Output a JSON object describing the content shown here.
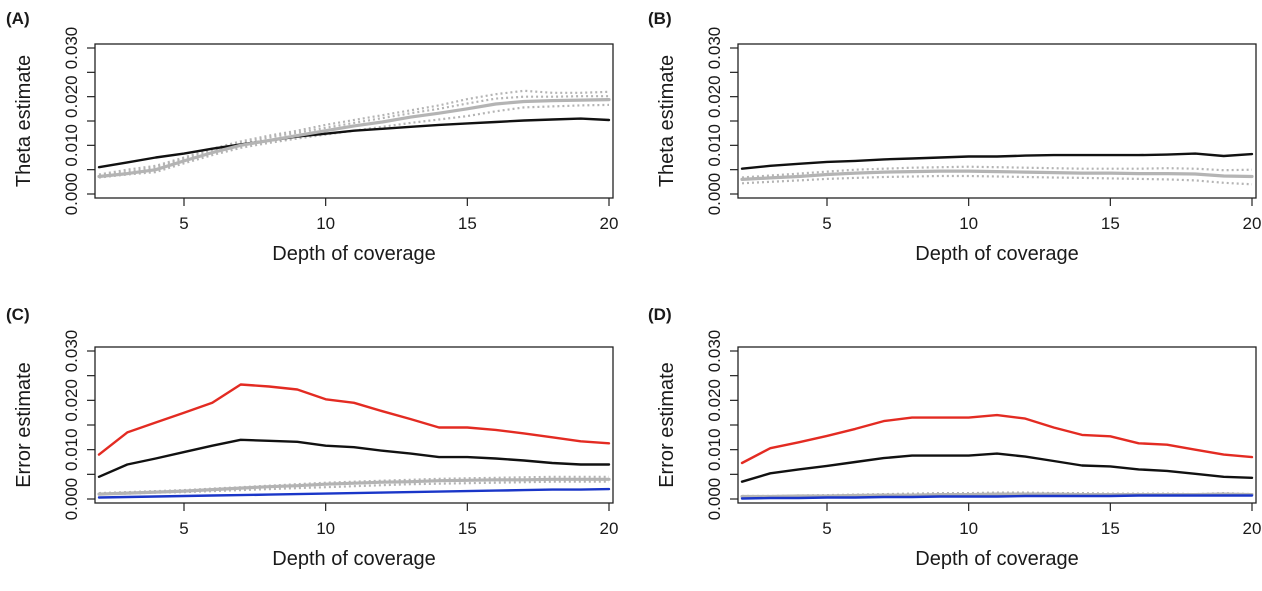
{
  "colors": {
    "black": "#111111",
    "grey": "#b4b4b4",
    "grey_dotted": "#b4b4b4",
    "red": "#e32b22",
    "blue": "#1a36c8"
  },
  "chart_data": [
    {
      "type": "line",
      "panel_label": "(A)",
      "xlabel": "Depth of coverage",
      "ylabel": "Theta estimate",
      "xlim": [
        2,
        20
      ],
      "ylim": [
        0,
        0.03
      ],
      "xticks": [
        5,
        10,
        15,
        20
      ],
      "xtick_labels": [
        "5",
        "10",
        "15",
        "20"
      ],
      "yticks": [
        0,
        0.005,
        0.01,
        0.015,
        0.02,
        0.025,
        0.03
      ],
      "ytick_labels": [
        "0.000",
        "",
        "0.010",
        "",
        "0.020",
        "",
        "0.030"
      ],
      "series": [
        {
          "color": "black",
          "style": "solid",
          "x": [
            2,
            3,
            4,
            5,
            6,
            7,
            8,
            9,
            10,
            11,
            12,
            13,
            14,
            15,
            16,
            17,
            18,
            19,
            20
          ],
          "y": [
            0.0055,
            0.0065,
            0.0075,
            0.0083,
            0.0093,
            0.0102,
            0.011,
            0.0118,
            0.0124,
            0.013,
            0.0134,
            0.0138,
            0.0142,
            0.0145,
            0.0148,
            0.0151,
            0.0153,
            0.0155,
            0.0152
          ]
        },
        {
          "color": "grey",
          "style": "solid",
          "x": [
            2,
            3,
            4,
            5,
            6,
            7,
            8,
            9,
            10,
            11,
            12,
            13,
            14,
            15,
            16,
            17,
            18,
            19,
            20
          ],
          "y": [
            0.0036,
            0.0042,
            0.005,
            0.0068,
            0.0085,
            0.01,
            0.011,
            0.012,
            0.013,
            0.014,
            0.0148,
            0.0158,
            0.0166,
            0.0175,
            0.0185,
            0.019,
            0.0192,
            0.0193,
            0.0194
          ]
        },
        {
          "color": "grey_dotted",
          "style": "dotted",
          "x": [
            2,
            3,
            4,
            5,
            6,
            7,
            8,
            9,
            10,
            11,
            12,
            13,
            14,
            15,
            16,
            17,
            18,
            19,
            20
          ],
          "y": [
            0.004,
            0.005,
            0.0058,
            0.0075,
            0.0093,
            0.0108,
            0.012,
            0.013,
            0.0142,
            0.0152,
            0.0162,
            0.0172,
            0.0182,
            0.0195,
            0.0205,
            0.0212,
            0.0208,
            0.0208,
            0.021
          ]
        },
        {
          "color": "grey_dotted",
          "style": "dotted",
          "x": [
            2,
            3,
            4,
            5,
            6,
            7,
            8,
            9,
            10,
            11,
            12,
            13,
            14,
            15,
            16,
            17,
            18,
            19,
            20
          ],
          "y": [
            0.0034,
            0.004,
            0.0045,
            0.0063,
            0.008,
            0.0095,
            0.0105,
            0.0114,
            0.0122,
            0.013,
            0.0138,
            0.0146,
            0.0153,
            0.016,
            0.017,
            0.0178,
            0.018,
            0.0182,
            0.0183
          ]
        },
        {
          "color": "grey_dotted",
          "style": "dotted",
          "x": [
            2,
            3,
            4,
            5,
            6,
            7,
            8,
            9,
            10,
            11,
            12,
            13,
            14,
            15,
            16,
            17,
            18,
            19,
            20
          ],
          "y": [
            0.0038,
            0.0045,
            0.0055,
            0.0072,
            0.009,
            0.0104,
            0.0116,
            0.0126,
            0.0136,
            0.0146,
            0.0156,
            0.0166,
            0.0175,
            0.0186,
            0.0196,
            0.02,
            0.02,
            0.0201,
            0.0201
          ]
        }
      ]
    },
    {
      "type": "line",
      "panel_label": "(B)",
      "xlabel": "Depth of coverage",
      "ylabel": "Theta estimate",
      "xlim": [
        2,
        20
      ],
      "ylim": [
        0,
        0.03
      ],
      "xticks": [
        5,
        10,
        15,
        20
      ],
      "xtick_labels": [
        "5",
        "10",
        "15",
        "20"
      ],
      "yticks": [
        0,
        0.005,
        0.01,
        0.015,
        0.02,
        0.025,
        0.03
      ],
      "ytick_labels": [
        "0.000",
        "",
        "0.010",
        "",
        "0.020",
        "",
        "0.030"
      ],
      "series": [
        {
          "color": "black",
          "style": "solid",
          "x": [
            2,
            3,
            4,
            5,
            6,
            7,
            8,
            9,
            10,
            11,
            12,
            13,
            14,
            15,
            16,
            17,
            18,
            19,
            20
          ],
          "y": [
            0.0052,
            0.0058,
            0.0062,
            0.0066,
            0.0068,
            0.0071,
            0.0073,
            0.0075,
            0.0077,
            0.0077,
            0.0079,
            0.008,
            0.008,
            0.008,
            0.008,
            0.0081,
            0.0083,
            0.0078,
            0.0082
          ]
        },
        {
          "color": "grey",
          "style": "solid",
          "x": [
            2,
            3,
            4,
            5,
            6,
            7,
            8,
            9,
            10,
            11,
            12,
            13,
            14,
            15,
            16,
            17,
            18,
            19,
            20
          ],
          "y": [
            0.003,
            0.0033,
            0.0036,
            0.004,
            0.0043,
            0.0045,
            0.0046,
            0.0047,
            0.0047,
            0.0046,
            0.0045,
            0.0044,
            0.0043,
            0.0043,
            0.0042,
            0.0042,
            0.0041,
            0.0037,
            0.0036
          ]
        },
        {
          "color": "grey_dotted",
          "style": "dotted",
          "x": [
            2,
            3,
            4,
            5,
            6,
            7,
            8,
            9,
            10,
            11,
            12,
            13,
            14,
            15,
            16,
            17,
            18,
            19,
            20
          ],
          "y": [
            0.0034,
            0.0038,
            0.0042,
            0.0046,
            0.005,
            0.0052,
            0.0054,
            0.0055,
            0.0056,
            0.0055,
            0.0054,
            0.0053,
            0.0052,
            0.0052,
            0.0052,
            0.0053,
            0.0052,
            0.0049,
            0.005
          ]
        },
        {
          "color": "grey_dotted",
          "style": "dotted",
          "x": [
            2,
            3,
            4,
            5,
            6,
            7,
            8,
            9,
            10,
            11,
            12,
            13,
            14,
            15,
            16,
            17,
            18,
            19,
            20
          ],
          "y": [
            0.0022,
            0.0025,
            0.0028,
            0.0031,
            0.0033,
            0.0035,
            0.0036,
            0.0037,
            0.0037,
            0.0036,
            0.0035,
            0.0034,
            0.0033,
            0.0032,
            0.0031,
            0.003,
            0.0028,
            0.0023,
            0.002
          ]
        }
      ]
    },
    {
      "type": "line",
      "panel_label": "(C)",
      "xlabel": "Depth of coverage",
      "ylabel": "Error estimate",
      "xlim": [
        2,
        20
      ],
      "ylim": [
        0,
        0.03
      ],
      "xticks": [
        5,
        10,
        15,
        20
      ],
      "xtick_labels": [
        "5",
        "10",
        "15",
        "20"
      ],
      "yticks": [
        0,
        0.005,
        0.01,
        0.015,
        0.02,
        0.025,
        0.03
      ],
      "ytick_labels": [
        "0.000",
        "",
        "0.010",
        "",
        "0.020",
        "",
        "0.030"
      ],
      "series": [
        {
          "color": "red",
          "style": "solid",
          "x": [
            2,
            3,
            4,
            5,
            6,
            7,
            8,
            9,
            10,
            11,
            12,
            13,
            14,
            15,
            16,
            17,
            18,
            19,
            20
          ],
          "y": [
            0.009,
            0.0135,
            0.0155,
            0.0175,
            0.0195,
            0.0232,
            0.0228,
            0.0222,
            0.0202,
            0.0195,
            0.0178,
            0.0162,
            0.0145,
            0.0145,
            0.014,
            0.0133,
            0.0125,
            0.0117,
            0.0113
          ]
        },
        {
          "color": "black",
          "style": "solid",
          "x": [
            2,
            3,
            4,
            5,
            6,
            7,
            8,
            9,
            10,
            11,
            12,
            13,
            14,
            15,
            16,
            17,
            18,
            19,
            20
          ],
          "y": [
            0.0045,
            0.007,
            0.0082,
            0.0095,
            0.0108,
            0.012,
            0.0118,
            0.0116,
            0.0108,
            0.0105,
            0.0098,
            0.0092,
            0.0085,
            0.0085,
            0.0082,
            0.0078,
            0.0073,
            0.007,
            0.007
          ]
        },
        {
          "color": "grey_dotted",
          "style": "dotted",
          "x": [
            2,
            3,
            4,
            5,
            6,
            7,
            8,
            9,
            10,
            11,
            12,
            13,
            14,
            15,
            16,
            17,
            18,
            19,
            20
          ],
          "y": [
            0.0012,
            0.0014,
            0.0016,
            0.0018,
            0.0021,
            0.0024,
            0.0027,
            0.003,
            0.0033,
            0.0035,
            0.0037,
            0.0039,
            0.0041,
            0.0042,
            0.0043,
            0.0044,
            0.0045,
            0.0045,
            0.0045
          ]
        },
        {
          "color": "grey_dotted",
          "style": "dotted",
          "x": [
            2,
            3,
            4,
            5,
            6,
            7,
            8,
            9,
            10,
            11,
            12,
            13,
            14,
            15,
            16,
            17,
            18,
            19,
            20
          ],
          "y": [
            0.001,
            0.0011,
            0.0013,
            0.0014,
            0.0016,
            0.0018,
            0.002,
            0.0022,
            0.0024,
            0.0026,
            0.0028,
            0.003,
            0.0031,
            0.0032,
            0.0033,
            0.0034,
            0.0035,
            0.0035,
            0.0035
          ]
        },
        {
          "color": "grey",
          "style": "solid",
          "x": [
            2,
            3,
            4,
            5,
            6,
            7,
            8,
            9,
            10,
            11,
            12,
            13,
            14,
            15,
            16,
            17,
            18,
            19,
            20
          ],
          "y": [
            0.001,
            0.0012,
            0.0014,
            0.0016,
            0.0019,
            0.0022,
            0.0025,
            0.0027,
            0.003,
            0.0032,
            0.0034,
            0.0035,
            0.0037,
            0.0038,
            0.0039,
            0.0039,
            0.004,
            0.004,
            0.004
          ]
        },
        {
          "color": "blue",
          "style": "solid",
          "x": [
            2,
            3,
            4,
            5,
            6,
            7,
            8,
            9,
            10,
            11,
            12,
            13,
            14,
            15,
            16,
            17,
            18,
            19,
            20
          ],
          "y": [
            0.0003,
            0.0004,
            0.0005,
            0.0006,
            0.0007,
            0.0008,
            0.0009,
            0.001,
            0.0011,
            0.0012,
            0.0013,
            0.0014,
            0.0015,
            0.0016,
            0.0017,
            0.0018,
            0.0019,
            0.0019,
            0.002
          ]
        }
      ]
    },
    {
      "type": "line",
      "panel_label": "(D)",
      "xlabel": "Depth of coverage",
      "ylabel": "Error estimate",
      "xlim": [
        2,
        20
      ],
      "ylim": [
        0,
        0.03
      ],
      "xticks": [
        5,
        10,
        15,
        20
      ],
      "xtick_labels": [
        "5",
        "10",
        "15",
        "20"
      ],
      "yticks": [
        0,
        0.005,
        0.01,
        0.015,
        0.02,
        0.025,
        0.03
      ],
      "ytick_labels": [
        "0.000",
        "",
        "0.010",
        "",
        "0.020",
        "",
        "0.030"
      ],
      "series": [
        {
          "color": "red",
          "style": "solid",
          "x": [
            2,
            3,
            4,
            5,
            6,
            7,
            8,
            9,
            10,
            11,
            12,
            13,
            14,
            15,
            16,
            17,
            18,
            19,
            20
          ],
          "y": [
            0.0073,
            0.0103,
            0.0115,
            0.0128,
            0.0142,
            0.0158,
            0.0165,
            0.0165,
            0.0165,
            0.017,
            0.0163,
            0.0145,
            0.013,
            0.0127,
            0.0113,
            0.011,
            0.01,
            0.009,
            0.0085
          ]
        },
        {
          "color": "black",
          "style": "solid",
          "x": [
            2,
            3,
            4,
            5,
            6,
            7,
            8,
            9,
            10,
            11,
            12,
            13,
            14,
            15,
            16,
            17,
            18,
            19,
            20
          ],
          "y": [
            0.0035,
            0.0052,
            0.006,
            0.0067,
            0.0075,
            0.0083,
            0.0088,
            0.0088,
            0.0088,
            0.0092,
            0.0086,
            0.0077,
            0.0068,
            0.0066,
            0.006,
            0.0057,
            0.0051,
            0.0045,
            0.0043
          ]
        },
        {
          "color": "grey_dotted",
          "style": "dotted",
          "x": [
            2,
            3,
            4,
            5,
            6,
            7,
            8,
            9,
            10,
            11,
            12,
            13,
            14,
            15,
            16,
            17,
            18,
            19,
            20
          ],
          "y": [
            0.0006,
            0.0006,
            0.0007,
            0.0008,
            0.0009,
            0.001,
            0.0011,
            0.0012,
            0.0012,
            0.0013,
            0.0013,
            0.0012,
            0.0012,
            0.0011,
            0.0011,
            0.0011,
            0.001,
            0.0012,
            0.001
          ]
        },
        {
          "color": "grey",
          "style": "solid",
          "x": [
            2,
            3,
            4,
            5,
            6,
            7,
            8,
            9,
            10,
            11,
            12,
            13,
            14,
            15,
            16,
            17,
            18,
            19,
            20
          ],
          "y": [
            0.0005,
            0.0005,
            0.0006,
            0.0006,
            0.0007,
            0.0008,
            0.0008,
            0.0009,
            0.0009,
            0.001,
            0.001,
            0.001,
            0.0009,
            0.0009,
            0.0009,
            0.0009,
            0.0009,
            0.001,
            0.0009
          ]
        },
        {
          "color": "blue",
          "style": "solid",
          "x": [
            2,
            3,
            4,
            5,
            6,
            7,
            8,
            9,
            10,
            11,
            12,
            13,
            14,
            15,
            16,
            17,
            18,
            19,
            20
          ],
          "y": [
            0.0001,
            0.0002,
            0.0002,
            0.0003,
            0.0003,
            0.0004,
            0.0004,
            0.0005,
            0.0005,
            0.0005,
            0.0006,
            0.0006,
            0.0006,
            0.0006,
            0.0007,
            0.0007,
            0.0007,
            0.0007,
            0.0007
          ]
        }
      ]
    }
  ]
}
